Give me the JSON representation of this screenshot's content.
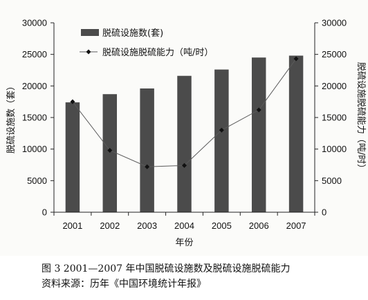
{
  "chart_data": {
    "type": "bar",
    "categories": [
      "2001",
      "2002",
      "2003",
      "2004",
      "2005",
      "2006",
      "2007"
    ],
    "series": [
      {
        "name": "脱硫设施数(套)",
        "kind": "bar",
        "axis": "left",
        "values": [
          17400,
          18700,
          19600,
          21600,
          22600,
          24500,
          24800
        ]
      },
      {
        "name": "脱硫设施脱硫能力（吨/时）",
        "kind": "line",
        "axis": "right",
        "values": [
          17500,
          9800,
          7200,
          7400,
          13000,
          16200,
          24300
        ]
      }
    ],
    "xlabel": "年份",
    "ylabel": "脱硫设施数（套）",
    "y2label": "脱硫设施脱硫能力（吨/时）",
    "ylim": [
      0,
      30000
    ],
    "y2lim": [
      0,
      30000
    ],
    "yticks": [
      0,
      5000,
      10000,
      15000,
      20000,
      25000,
      30000
    ],
    "y2ticks": [
      0,
      5000,
      10000,
      15000,
      20000,
      25000,
      30000
    ],
    "legend_position": "top-left",
    "grid": false,
    "colors": {
      "bar": "#4b4b4b",
      "line": "#5a5a5a",
      "marker": "#111111"
    }
  },
  "caption": {
    "line1": "图 3  2001—2007 年中国脱硫设施数及脱硫设施脱硫能力",
    "line2": "资料来源：历年《中国环境统计年报》"
  }
}
